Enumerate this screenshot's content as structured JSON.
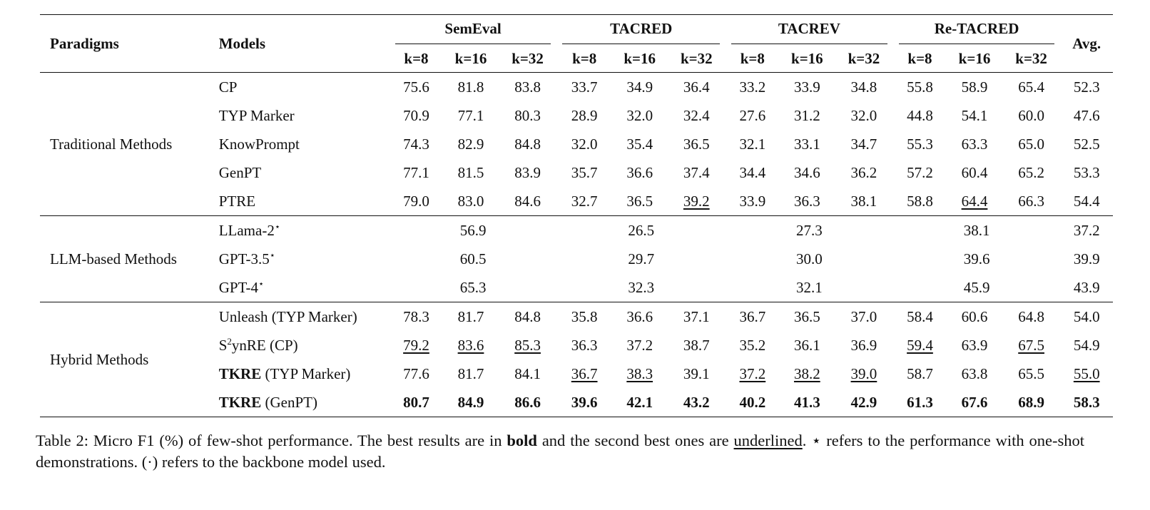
{
  "table": {
    "col_paradigms": "Paradigms",
    "col_models": "Models",
    "col_avg": "Avg.",
    "datasets": [
      "SemEval",
      "TACRED",
      "TACREV",
      "Re-TACRED"
    ],
    "k_labels": [
      "k=8",
      "k=16",
      "k=32"
    ],
    "groups": [
      {
        "paradigm": "Traditional Methods",
        "rows": [
          {
            "model": "CP",
            "values": [
              "75.6",
              "81.8",
              "83.8",
              "33.7",
              "34.9",
              "36.4",
              "33.2",
              "33.9",
              "34.8",
              "55.8",
              "58.9",
              "65.4"
            ],
            "avg": "52.3"
          },
          {
            "model": "TYP Marker",
            "values": [
              "70.9",
              "77.1",
              "80.3",
              "28.9",
              "32.0",
              "32.4",
              "27.6",
              "31.2",
              "32.0",
              "44.8",
              "54.1",
              "60.0"
            ],
            "avg": "47.6"
          },
          {
            "model": "KnowPrompt",
            "values": [
              "74.3",
              "82.9",
              "84.8",
              "32.0",
              "35.4",
              "36.5",
              "32.1",
              "33.1",
              "34.7",
              "55.3",
              "63.3",
              "65.0"
            ],
            "avg": "52.5"
          },
          {
            "model": "GenPT",
            "values": [
              "77.1",
              "81.5",
              "83.9",
              "35.7",
              "36.6",
              "37.4",
              "34.4",
              "34.6",
              "36.2",
              "57.2",
              "60.4",
              "65.2"
            ],
            "avg": "53.3"
          },
          {
            "model": "PTRE",
            "values": [
              "79.0",
              "83.0",
              "84.6",
              "32.7",
              "36.5",
              "39.2",
              "33.9",
              "36.3",
              "38.1",
              "58.8",
              "64.4",
              "66.3"
            ],
            "avg": "54.4"
          }
        ]
      },
      {
        "paradigm": "LLM-based Methods",
        "rows": [
          {
            "model": "LLama-2",
            "star": "⋆",
            "values": [
              "56.9",
              "26.5",
              "27.3",
              "38.1"
            ],
            "avg": "37.2"
          },
          {
            "model": "GPT-3.5",
            "star": "⋆",
            "values": [
              "60.5",
              "29.7",
              "30.0",
              "39.6"
            ],
            "avg": "39.9"
          },
          {
            "model": "GPT-4",
            "star": "⋆",
            "values": [
              "65.3",
              "32.3",
              "32.1",
              "45.9"
            ],
            "avg": "43.9"
          }
        ]
      },
      {
        "paradigm": "Hybrid Methods",
        "rows": [
          {
            "model": "Unleash (TYP Marker)",
            "values": [
              "78.3",
              "81.7",
              "84.8",
              "35.8",
              "36.6",
              "37.1",
              "36.7",
              "36.5",
              "37.0",
              "58.4",
              "60.6",
              "64.8"
            ],
            "avg": "54.0"
          },
          {
            "model_prefix": "S",
            "model_sup": "2",
            "model_suffix": "ynRE (CP)",
            "values": [
              "79.2",
              "83.6",
              "85.3",
              "36.3",
              "37.2",
              "38.7",
              "35.2",
              "36.1",
              "36.9",
              "59.4",
              "63.9",
              "67.5"
            ],
            "avg": "54.9"
          },
          {
            "model_bold": "TKRE",
            "model_rest": " (TYP Marker)",
            "values": [
              "77.6",
              "81.7",
              "84.1",
              "36.7",
              "38.3",
              "39.1",
              "37.2",
              "38.2",
              "39.0",
              "58.7",
              "63.8",
              "65.5"
            ],
            "avg": "55.0"
          },
          {
            "model_bold": "TKRE",
            "model_rest": " (GenPT)",
            "values": [
              "80.7",
              "84.9",
              "86.6",
              "39.6",
              "42.1",
              "43.2",
              "40.2",
              "41.3",
              "42.9",
              "61.3",
              "67.6",
              "68.9"
            ],
            "avg": "58.3"
          }
        ]
      }
    ]
  },
  "caption": {
    "lead": "Table 2:  Micro F1 (%) of few-shot performance.  The best results are in ",
    "bold_word": "bold",
    "mid": " and the second best ones are ",
    "underline_word": "underlined",
    "star_part": ".  ⋆ refers to the performance with one-shot demonstrations. (·) refers to the backbone model used."
  }
}
